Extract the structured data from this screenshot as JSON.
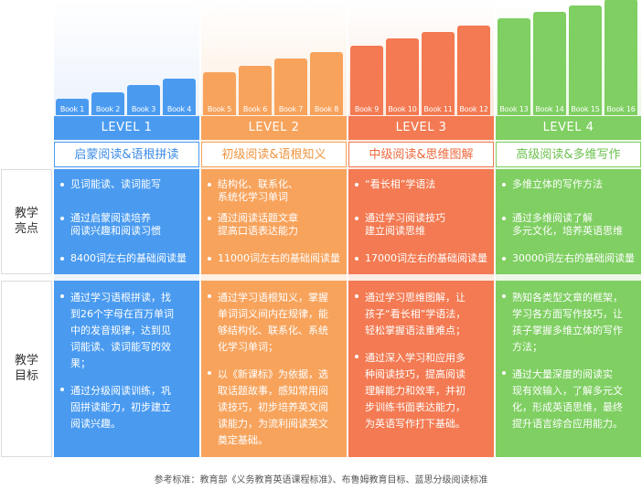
{
  "levels": [
    {
      "name": "LEVEL 1",
      "subtitle": "启蒙阅读&语根拼读",
      "bg": "#eef4fd",
      "color": "#4a9bf0",
      "dark": "#3a8be6",
      "books": [
        "Book 1",
        "Book 2",
        "Book 3",
        "Book 4"
      ],
      "bar_levels": [
        1,
        2,
        3,
        4
      ],
      "highlights": [
        [
          "见词能读、读词能写"
        ],
        [
          "通过启蒙阅读培养",
          "阅读兴趣和阅读习惯"
        ],
        [
          "8400词左右的基础阅读量"
        ]
      ],
      "goals": [
        [
          "通过学习语根拼读，找",
          "到26个字母在百万单词",
          "中的发音规律，达到见",
          "词能读、读词能写的效",
          "果；"
        ],
        [
          "通过分级阅读训练，巩",
          "固拼读能力，初步建立",
          "阅读兴趣。"
        ]
      ]
    },
    {
      "name": "LEVEL 2",
      "subtitle": "初级阅读&语根知义",
      "bg": "#fef0e3",
      "color": "#f7a35c",
      "dark": "#f0953f",
      "books": [
        "Book 5",
        "Book 6",
        "Book 7",
        "Book 8"
      ],
      "bar_levels": [
        5,
        6,
        7,
        8
      ],
      "highlights": [
        [
          "结构化、联系化、",
          "系统化学习单词"
        ],
        [
          "通过阅读话题文章",
          "提高口语表达能力"
        ],
        [
          "11000词左右的基础阅读量"
        ]
      ],
      "goals": [
        [
          "通过学习语根知义，掌握",
          "单词词义间内在规律，能",
          "够结构化、联系化、系统",
          "化学习单词；"
        ],
        [
          "以《新课标》为依据，选",
          "取话题故事，感知常用阅",
          "读技巧，初步培养英文阅",
          "读能力，为流利阅读英文",
          "奠定基础。"
        ]
      ]
    },
    {
      "name": "LEVEL 3",
      "subtitle": "中级阅读&思维图解",
      "bg": "#fdebe4",
      "color": "#f37a52",
      "dark": "#ec6a3e",
      "books": [
        "Book 9",
        "Book 10",
        "Book 11",
        "Book 12"
      ],
      "bar_levels": [
        9,
        10,
        11,
        12
      ],
      "highlights": [
        [
          "“看长相”学语法"
        ],
        [
          "通过学习阅读技巧",
          "建立阅读思维"
        ],
        [
          "17000词左右的基础阅读量"
        ]
      ],
      "goals": [
        [
          "通过学习思维图解，让",
          "孩子“看长相”学语法，",
          "轻松掌握语法重难点；"
        ],
        [
          "通过深入学习和应用多",
          "种阅读技巧，提高阅读",
          "理解能力和效率，并初",
          "步训练书面表达能力，",
          "为英语写作打下基础。"
        ]
      ]
    },
    {
      "name": "LEVEL 4",
      "subtitle": "高级阅读&多维写作",
      "bg": "#edf8e8",
      "color": "#7fcf62",
      "dark": "#6cc24e",
      "books": [
        "Book 13",
        "Book 14",
        "Book 15",
        "Book 16"
      ],
      "bar_levels": [
        13,
        14,
        15,
        16
      ],
      "highlights": [
        [
          "多维立体的写作方法"
        ],
        [
          "通过多维阅读了解",
          "多元文化，培养英语思维"
        ],
        [
          "30000词左右的基础阅读量"
        ]
      ],
      "goals": [
        [
          "熟知各类型文章的框架，",
          "学习各方面写作技巧，让",
          "孩子掌握多维立体的写作",
          "方法；"
        ],
        [
          "通过大量深度的阅读实",
          "现有效输入，了解多元文",
          "化，形成英语思维，最终",
          "提升语言综合应用能力。"
        ]
      ]
    }
  ],
  "side_labels": {
    "highlights": [
      "教学",
      "亮点"
    ],
    "goals": [
      "教学",
      "目标"
    ]
  },
  "colors": {
    "side_border": "#dcdcdc",
    "text": "#333333"
  },
  "footer": "参考标准：教育部《义务教育英语课程标准》、布鲁姆教育目标、蓝思分级阅读标准"
}
